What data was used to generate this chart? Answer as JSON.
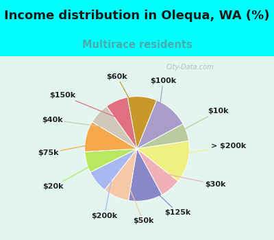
{
  "title": "Income distribution in Olequa, WA (%)",
  "subtitle": "Multirace residents",
  "watermark": "© City-Data.com",
  "background_outer": "#00FFFF",
  "title_fontsize": 13,
  "subtitle_fontsize": 10.5,
  "subtitle_color": "#4aadad",
  "slices": [
    {
      "label": "$100k",
      "value": 11.0,
      "color": "#a89cc8"
    },
    {
      "label": "$10k",
      "value": 5.5,
      "color": "#b8ccA0"
    },
    {
      "label": "> $200k",
      "value": 13.0,
      "color": "#f0f080"
    },
    {
      "label": "$30k",
      "value": 6.5,
      "color": "#f0b0b8"
    },
    {
      "label": "$125k",
      "value": 10.5,
      "color": "#8888c8"
    },
    {
      "label": "$50k",
      "value": 8.0,
      "color": "#f5c8a8"
    },
    {
      "label": "$200k",
      "value": 7.0,
      "color": "#a8b8f0"
    },
    {
      "label": "$20k",
      "value": 6.5,
      "color": "#b8e860"
    },
    {
      "label": "$75k",
      "value": 9.5,
      "color": "#f5a84a"
    },
    {
      "label": "$40k",
      "value": 6.5,
      "color": "#d0c8b8"
    },
    {
      "label": "$150k",
      "value": 7.0,
      "color": "#e07080"
    },
    {
      "label": "$60k",
      "value": 9.0,
      "color": "#c89828"
    }
  ]
}
